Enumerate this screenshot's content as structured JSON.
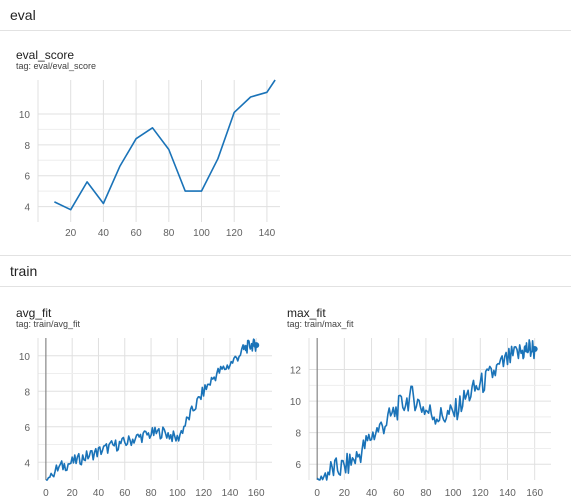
{
  "sections": {
    "eval": "eval",
    "train": "train"
  },
  "colors": {
    "line": "#1a73b8",
    "grid": "#e0e0e0",
    "axis": "#757575"
  },
  "cards": [
    {
      "title": "eval_score",
      "tag": "tag: eval/eval_score"
    },
    {
      "title": "avg_fit",
      "tag": "tag: train/avg_fit"
    },
    {
      "title": "max_fit",
      "tag": "tag: train/max_fit"
    }
  ],
  "chart_data": [
    {
      "type": "line",
      "title": "eval_score",
      "x": [
        10,
        20,
        30,
        40,
        50,
        60,
        70,
        80,
        90,
        100,
        110,
        120,
        130,
        140,
        145
      ],
      "series": [
        {
          "values": [
            4.3,
            3.8,
            5.6,
            4.2,
            6.6,
            8.4,
            9.1,
            7.7,
            5.0,
            5.0,
            7.1,
            10.1,
            11.1,
            11.4,
            12.2
          ]
        }
      ],
      "xticks": [
        20,
        40,
        60,
        80,
        100,
        120,
        140
      ],
      "yticks": [
        4,
        6,
        8,
        10
      ],
      "xlim": [
        0,
        148
      ],
      "ylim": [
        3.0,
        12.2
      ],
      "grid": true
    },
    {
      "type": "line",
      "title": "avg_fit",
      "x": [
        0,
        10,
        20,
        30,
        40,
        50,
        60,
        70,
        80,
        90,
        100,
        110,
        120,
        130,
        140,
        150,
        155,
        160
      ],
      "series": [
        {
          "values": [
            3.0,
            3.7,
            4.0,
            4.3,
            4.6,
            4.9,
            5.1,
            5.4,
            5.6,
            5.7,
            5.3,
            6.7,
            8.0,
            9.0,
            9.5,
            10.3,
            10.6,
            10.6
          ]
        }
      ],
      "xticks": [
        0,
        20,
        40,
        60,
        80,
        100,
        120,
        140,
        160
      ],
      "yticks": [
        4,
        6,
        8,
        10
      ],
      "xlim": [
        -6,
        172
      ],
      "ylim": [
        3.0,
        11.0
      ],
      "grid": true
    },
    {
      "type": "line",
      "title": "max_fit",
      "x": [
        0,
        10,
        20,
        30,
        40,
        50,
        60,
        70,
        80,
        90,
        100,
        110,
        120,
        130,
        140,
        150,
        155,
        160
      ],
      "series": [
        {
          "values": [
            4.9,
            5.6,
            5.8,
            6.5,
            7.8,
            8.6,
            9.6,
            10.3,
            9.4,
            9.0,
            9.2,
            10.3,
            11.0,
            11.8,
            12.6,
            13.1,
            13.3,
            13.3
          ]
        }
      ],
      "xticks": [
        0,
        20,
        40,
        60,
        80,
        100,
        120,
        140,
        160
      ],
      "yticks": [
        6,
        8,
        10,
        12
      ],
      "xlim": [
        -6,
        172
      ],
      "ylim": [
        5.0,
        14.0
      ],
      "grid": true
    }
  ]
}
